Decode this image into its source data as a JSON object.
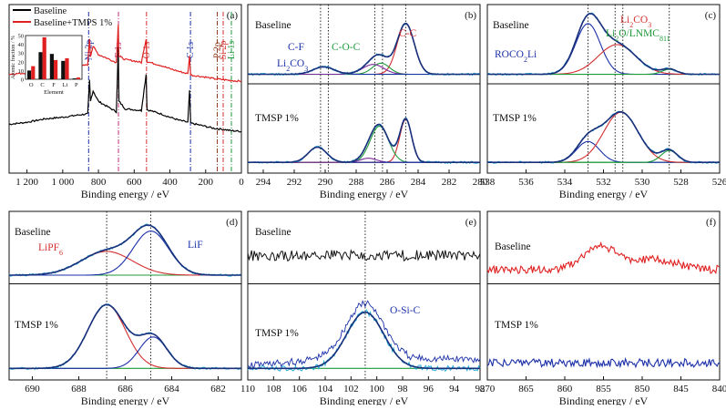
{
  "figure": {
    "panels": [
      "(a)",
      "(b)",
      "(c)",
      "(d)",
      "(e)",
      "(f)"
    ]
  },
  "chart_data": [
    {
      "panel": "(a)",
      "type": "line",
      "xlabel": "Binding energy / eV",
      "xlim": [
        1300,
        0
      ],
      "x_reversed": true,
      "ticks": [
        1200,
        1000,
        800,
        600,
        400,
        200,
        0
      ],
      "tick_labels": [
        "1 200",
        "1 000",
        "800",
        "600",
        "400",
        "200",
        "0"
      ],
      "legend": [
        "Baseline",
        "Baseline+TMPS 1%"
      ],
      "legend_position": "top-left",
      "series_colors": [
        "#000000",
        "#e02020"
      ],
      "series": [
        {
          "name": "Baseline",
          "points": [
            [
              1300,
              95
            ],
            [
              1200,
              100
            ],
            [
              1100,
              108
            ],
            [
              1000,
              112
            ],
            [
              900,
              118
            ],
            [
              860,
              120
            ],
            [
              850,
              200
            ],
            [
              845,
              150
            ],
            [
              830,
              175
            ],
            [
              800,
              150
            ],
            [
              760,
              140
            ],
            [
              700,
              125
            ],
            [
              689,
              280
            ],
            [
              685,
              150
            ],
            [
              650,
              132
            ],
            [
              600,
              130
            ],
            [
              560,
              128
            ],
            [
              533,
              215
            ],
            [
              528,
              130
            ],
            [
              450,
              120
            ],
            [
              400,
              112
            ],
            [
              350,
              105
            ],
            [
              300,
              100
            ],
            [
              290,
              175
            ],
            [
              284,
              98
            ],
            [
              200,
              90
            ],
            [
              150,
              85
            ],
            [
              100,
              83
            ],
            [
              60,
              80
            ],
            [
              0,
              78
            ]
          ]
        },
        {
          "name": "Baseline+TMPS 1%",
          "points": [
            [
              1300,
              215
            ],
            [
              1200,
              218
            ],
            [
              1100,
              225
            ],
            [
              1000,
              228
            ],
            [
              900,
              234
            ],
            [
              860,
              238
            ],
            [
              850,
              300
            ],
            [
              845,
              258
            ],
            [
              830,
              282
            ],
            [
              800,
              262
            ],
            [
              760,
              255
            ],
            [
              700,
              243
            ],
            [
              689,
              335
            ],
            [
              685,
              258
            ],
            [
              650,
              250
            ],
            [
              600,
              247
            ],
            [
              560,
              243
            ],
            [
              533,
              300
            ],
            [
              528,
              245
            ],
            [
              450,
              236
            ],
            [
              400,
              228
            ],
            [
              350,
              222
            ],
            [
              300,
              216
            ],
            [
              290,
              258
            ],
            [
              284,
              213
            ],
            [
              200,
              208
            ],
            [
              150,
              204
            ],
            [
              100,
              202
            ],
            [
              60,
              200
            ],
            [
              0,
              198
            ]
          ]
        }
      ],
      "peak_labels": [
        {
          "text": "Ni 2p",
          "x": 855,
          "color": "#1a2fa8"
        },
        {
          "text": "F 1s",
          "x": 688,
          "color": "#c0307c"
        },
        {
          "text": "O 1s",
          "x": 531,
          "color": "#d23030"
        },
        {
          "text": "C 1s",
          "x": 285,
          "color": "#1a2fa8"
        },
        {
          "text": "Si 2p",
          "x": 102,
          "color": "#d23030"
        },
        {
          "text": "P 2p",
          "x": 135,
          "color": "#8b3a1a"
        },
        {
          "text": "Li 1s",
          "x": 56,
          "color": "#1f9a3a"
        }
      ],
      "inset": {
        "type": "bar",
        "xlabel": "Element",
        "ylabel": "Atomic fraction / %",
        "ylim": [
          0,
          50
        ],
        "yticks": [
          0,
          10,
          20,
          30,
          40,
          50
        ],
        "categories": [
          "O",
          "C",
          "F",
          "Li",
          "P"
        ],
        "series": [
          {
            "name": "Baseline",
            "color": "#111111",
            "values": [
              10,
              31,
              29,
              21,
              1
            ]
          },
          {
            "name": "Baseline+TMPS 1%",
            "color": "#e02020",
            "values": [
              15,
              48,
              22,
              24,
              2
            ]
          }
        ]
      }
    },
    {
      "panel": "(b)",
      "type": "line",
      "xlabel": "Binding energy / eV",
      "xlim": [
        295,
        280
      ],
      "x_reversed": true,
      "ticks": [
        294,
        292,
        290,
        288,
        286,
        284,
        282,
        280
      ],
      "dotted_lines": [
        290.3,
        289.8,
        286.8,
        286.3,
        284.8
      ],
      "annotations": [
        {
          "text": "Baseline",
          "color": "#111111"
        },
        {
          "text": "C-F",
          "color": "#1a2fa8"
        },
        {
          "text": "Li2CO3",
          "color": "#1a2fa8"
        },
        {
          "text": "C-O-C",
          "color": "#1f9a3a"
        },
        {
          "text": "C-C",
          "color": "#d23030"
        },
        {
          "text": "TMSP 1%",
          "color": "#111111"
        }
      ],
      "subplots": [
        {
          "label": "Baseline",
          "components": [
            {
              "name": "C-C",
              "color": "#d23030",
              "center": 284.8,
              "fwhm": 1.3,
              "height": 0.82
            },
            {
              "name": "C-O-C",
              "color": "#1f9a3a",
              "center": 286.4,
              "fwhm": 1.3,
              "height": 0.18
            },
            {
              "name": "C-F",
              "color": "#7a2a9a",
              "center": 286.9,
              "fwhm": 1.6,
              "height": 0.16
            },
            {
              "name": "Li2CO3",
              "color": "#1a2fa8",
              "center": 290.1,
              "fwhm": 1.6,
              "height": 0.12
            }
          ]
        },
        {
          "label": "TMSP 1%",
          "components": [
            {
              "name": "C-C",
              "color": "#d23030",
              "center": 284.8,
              "fwhm": 0.9,
              "height": 0.62
            },
            {
              "name": "C-O-C",
              "color": "#1f9a3a",
              "center": 286.5,
              "fwhm": 1.4,
              "height": 0.52
            },
            {
              "name": "C-F",
              "color": "#7a2a9a",
              "center": 287.2,
              "fwhm": 1.2,
              "height": 0.06
            },
            {
              "name": "Li2CO3",
              "color": "#1a2fa8",
              "center": 290.5,
              "fwhm": 1.4,
              "height": 0.22
            }
          ]
        }
      ]
    },
    {
      "panel": "(c)",
      "type": "line",
      "xlabel": "Binding energy / eV",
      "xlim": [
        538,
        526
      ],
      "x_reversed": true,
      "ticks": [
        538,
        536,
        534,
        532,
        530,
        528,
        526
      ],
      "dotted_lines": [
        532.8,
        531.4,
        531.0,
        528.6
      ],
      "annotations": [
        {
          "text": "Baseline",
          "color": "#111111"
        },
        {
          "text": "ROCO2Li",
          "color": "#1a2fa8"
        },
        {
          "text": "Li2CO3",
          "color": "#d23030"
        },
        {
          "text": "Li2O/LNMC811",
          "color": "#1f9a3a"
        },
        {
          "text": "TMSP 1%",
          "color": "#111111"
        }
      ],
      "subplots": [
        {
          "label": "Baseline",
          "components": [
            {
              "name": "ROCO2Li",
              "color": "#1a2fa8",
              "center": 532.8,
              "fwhm": 1.5,
              "height": 0.82
            },
            {
              "name": "Li2CO3",
              "color": "#d23030",
              "center": 531.3,
              "fwhm": 2.3,
              "height": 0.48
            },
            {
              "name": "Li2O/LNMC811",
              "color": "#1f9a3a",
              "center": 528.6,
              "fwhm": 0.9,
              "height": 0.08
            }
          ]
        },
        {
          "label": "TMSP 1%",
          "components": [
            {
              "name": "ROCO2Li",
              "color": "#1a2fa8",
              "center": 532.8,
              "fwhm": 1.4,
              "height": 0.3
            },
            {
              "name": "Li2CO3",
              "color": "#d23030",
              "center": 531.1,
              "fwhm": 2.1,
              "height": 0.72
            },
            {
              "name": "Li2O/LNMC811",
              "color": "#1f9a3a",
              "center": 528.6,
              "fwhm": 1.0,
              "height": 0.17
            }
          ]
        }
      ]
    },
    {
      "panel": "(d)",
      "type": "line",
      "xlabel": "Binding energy / eV",
      "xlim": [
        691,
        681
      ],
      "x_reversed": true,
      "ticks": [
        690,
        688,
        686,
        684,
        682
      ],
      "dotted_lines": [
        686.8,
        684.9
      ],
      "annotations": [
        {
          "text": "Baseline",
          "color": "#111111"
        },
        {
          "text": "LiPF6",
          "color": "#d23030"
        },
        {
          "text": "LiF",
          "color": "#1a2fa8"
        },
        {
          "text": "TMSP 1%",
          "color": "#111111"
        }
      ],
      "subplots": [
        {
          "label": "Baseline",
          "components": [
            {
              "name": "LiPF6",
              "color": "#d23030",
              "center": 686.8,
              "fwhm": 2.6,
              "height": 0.42
            },
            {
              "name": "LiF",
              "color": "#1a2fa8",
              "center": 684.9,
              "fwhm": 1.8,
              "height": 0.78
            }
          ]
        },
        {
          "label": "TMSP 1%",
          "components": [
            {
              "name": "LiPF6",
              "color": "#d23030",
              "center": 686.8,
              "fwhm": 1.9,
              "height": 0.85
            },
            {
              "name": "LiF",
              "color": "#1a2fa8",
              "center": 684.8,
              "fwhm": 1.4,
              "height": 0.42
            }
          ]
        }
      ]
    },
    {
      "panel": "(e)",
      "type": "line",
      "xlabel": "Binding energy / eV",
      "xlim": [
        110,
        92
      ],
      "x_reversed": true,
      "ticks": [
        110,
        108,
        106,
        104,
        102,
        100,
        98,
        96,
        94,
        92
      ],
      "dotted_lines": [
        100.9
      ],
      "annotations": [
        {
          "text": "Baseline",
          "color": "#111111"
        },
        {
          "text": "O-Si-C",
          "color": "#1a2fa8"
        },
        {
          "text": "TMSP 1%",
          "color": "#111111"
        }
      ],
      "subplots": [
        {
          "label": "Baseline",
          "noise_only": true
        },
        {
          "label": "TMSP 1%",
          "components": [
            {
              "name": "O-Si-C",
              "color": "#1a2fa8",
              "center": 100.9,
              "fwhm": 3.4,
              "height": 0.75
            }
          ]
        }
      ]
    },
    {
      "panel": "(f)",
      "type": "line",
      "xlabel": "Binding energy / eV",
      "xlim": [
        870,
        840
      ],
      "x_reversed": true,
      "ticks": [
        870,
        865,
        860,
        855,
        850,
        845,
        840
      ],
      "annotations": [
        {
          "text": "Baseline",
          "color": "#111111"
        },
        {
          "text": "TMSP 1%",
          "color": "#111111"
        }
      ],
      "subplots": [
        {
          "label": "Baseline",
          "color": "#e02020",
          "peaks": [
            [
              855.5,
              0.55,
              2.2
            ],
            [
              848.5,
              0.25,
              3.0
            ]
          ]
        },
        {
          "label": "TMSP 1%",
          "color": "#1a2fa8",
          "peaks": []
        }
      ]
    }
  ]
}
